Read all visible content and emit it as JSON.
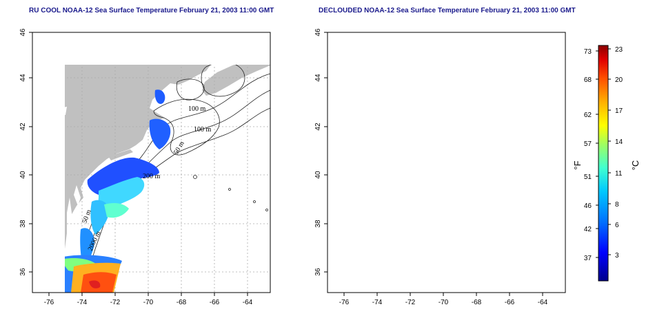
{
  "panels": [
    {
      "id": "ru-cool",
      "title": "RU COOL NOAA-12 Sea Surface Temperature February 21, 2003 11:00 GMT"
    },
    {
      "id": "declouded",
      "title": "DECLOUDED NOAA-12 Sea Surface Temperature February 21, 2003 11:00 GMT"
    }
  ],
  "axes": {
    "x_ticks": [
      "-76",
      "-74",
      "-72",
      "-70",
      "-68",
      "-66",
      "-64"
    ],
    "x_values": [
      -76,
      -74,
      -72,
      -70,
      -68,
      -66,
      -64
    ],
    "y_ticks": [
      "36",
      "38",
      "40",
      "42",
      "44",
      "46"
    ],
    "y_values": [
      36,
      38,
      40,
      42,
      44,
      46
    ],
    "lon_range": [
      -77.2,
      -62.8
    ],
    "lat_range": [
      35,
      46
    ]
  },
  "contour_labels": {
    "c100a": "100 m",
    "c100b": "100 m",
    "c50": "50 m",
    "c50b": "50 m",
    "c200": "200 m",
    "c2000": "2000 m"
  },
  "colorbar": {
    "fahrenheit_label": "°F",
    "celsius_label": "°C",
    "fahrenheit_ticks": [
      "73",
      "68",
      "62",
      "57",
      "51",
      "46",
      "42",
      "37"
    ],
    "celsius_ticks": [
      "23",
      "20",
      "17",
      "14",
      "11",
      "8",
      "6",
      "3"
    ],
    "colors": [
      "#00008b",
      "#0000ff",
      "#0070ff",
      "#00c8ff",
      "#40ffd0",
      "#a0ff60",
      "#ffff00",
      "#ffb000",
      "#ff5000",
      "#e00000",
      "#8b0000"
    ]
  },
  "colors": {
    "land": "#c0c0c0",
    "ocean": "#ffffff",
    "title": "#1a1a8c"
  }
}
